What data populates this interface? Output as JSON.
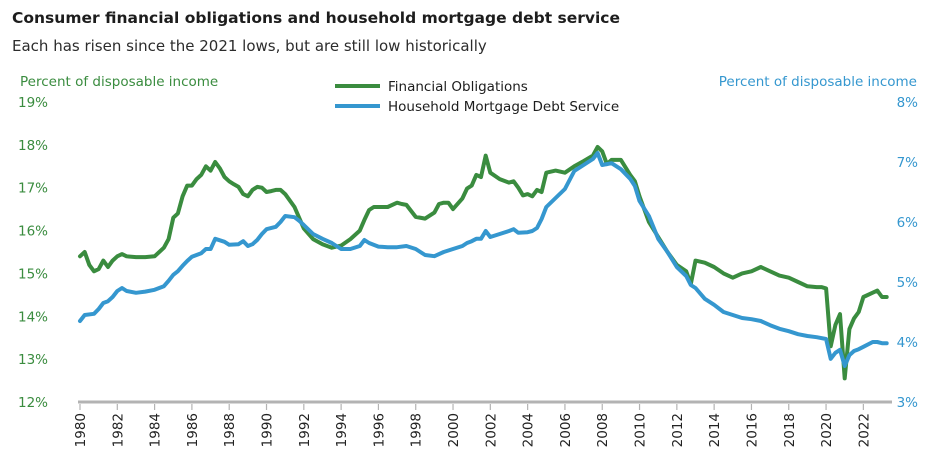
{
  "header": {
    "title": "Consumer financial obligations and household mortgage debt service",
    "subtitle": "Each has risen since the 2021 lows, but are still low historically"
  },
  "colors": {
    "financial_obligations": "#3a8c3f",
    "mortgage_debt_service": "#3597cf",
    "axis": "#b3b3b3"
  },
  "chart_data": {
    "type": "line",
    "y_left": {
      "label": "Percent of disposable income",
      "range": [
        12,
        19
      ],
      "ticks": [
        "12%",
        "13%",
        "14%",
        "15%",
        "16%",
        "17%",
        "18%",
        "19%"
      ]
    },
    "y_right": {
      "label": "Percent of disposable income",
      "range": [
        3,
        8
      ],
      "ticks": [
        "3%",
        "4%",
        "5%",
        "6%",
        "7%",
        "8%"
      ]
    },
    "x": {
      "range": [
        1980,
        2023.75
      ],
      "ticks": [
        "1980",
        "1982",
        "1984",
        "1986",
        "1988",
        "1990",
        "1992",
        "1994",
        "1996",
        "1998",
        "2000",
        "2002",
        "2004",
        "2006",
        "2008",
        "2010",
        "2012",
        "2014",
        "2016",
        "2018",
        "2020",
        "2022"
      ]
    },
    "legend_position": "top-center",
    "grid": false,
    "series": [
      {
        "name": "Financial Obligations",
        "axis": "left",
        "points": [
          [
            1980.0,
            15.4
          ],
          [
            1980.25,
            15.5
          ],
          [
            1980.5,
            15.2
          ],
          [
            1980.75,
            15.05
          ],
          [
            1981.0,
            15.1
          ],
          [
            1981.25,
            15.3
          ],
          [
            1981.5,
            15.15
          ],
          [
            1981.75,
            15.3
          ],
          [
            1982.0,
            15.4
          ],
          [
            1982.25,
            15.45
          ],
          [
            1982.5,
            15.4
          ],
          [
            1983.0,
            15.38
          ],
          [
            1983.5,
            15.38
          ],
          [
            1984.0,
            15.4
          ],
          [
            1984.5,
            15.6
          ],
          [
            1984.75,
            15.8
          ],
          [
            1985.0,
            16.3
          ],
          [
            1985.25,
            16.4
          ],
          [
            1985.5,
            16.8
          ],
          [
            1985.75,
            17.05
          ],
          [
            1986.0,
            17.05
          ],
          [
            1986.25,
            17.2
          ],
          [
            1986.5,
            17.3
          ],
          [
            1986.75,
            17.5
          ],
          [
            1987.0,
            17.4
          ],
          [
            1987.25,
            17.6
          ],
          [
            1987.5,
            17.45
          ],
          [
            1987.75,
            17.25
          ],
          [
            1988.0,
            17.15
          ],
          [
            1988.25,
            17.08
          ],
          [
            1988.5,
            17.02
          ],
          [
            1988.75,
            16.85
          ],
          [
            1989.0,
            16.8
          ],
          [
            1989.25,
            16.95
          ],
          [
            1989.5,
            17.02
          ],
          [
            1989.75,
            17.0
          ],
          [
            1990.0,
            16.9
          ],
          [
            1990.25,
            16.92
          ],
          [
            1990.5,
            16.95
          ],
          [
            1990.75,
            16.95
          ],
          [
            1991.0,
            16.85
          ],
          [
            1991.5,
            16.55
          ],
          [
            1992.0,
            16.05
          ],
          [
            1992.5,
            15.8
          ],
          [
            1993.0,
            15.68
          ],
          [
            1993.5,
            15.6
          ],
          [
            1994.0,
            15.65
          ],
          [
            1994.5,
            15.8
          ],
          [
            1995.0,
            16.0
          ],
          [
            1995.25,
            16.25
          ],
          [
            1995.5,
            16.48
          ],
          [
            1995.75,
            16.55
          ],
          [
            1996.0,
            16.55
          ],
          [
            1996.5,
            16.55
          ],
          [
            1997.0,
            16.65
          ],
          [
            1997.25,
            16.62
          ],
          [
            1997.5,
            16.6
          ],
          [
            1998.0,
            16.32
          ],
          [
            1998.5,
            16.28
          ],
          [
            1999.0,
            16.42
          ],
          [
            1999.25,
            16.62
          ],
          [
            1999.5,
            16.65
          ],
          [
            1999.75,
            16.65
          ],
          [
            2000.0,
            16.5
          ],
          [
            2000.5,
            16.75
          ],
          [
            2000.75,
            16.98
          ],
          [
            2001.0,
            17.05
          ],
          [
            2001.25,
            17.3
          ],
          [
            2001.5,
            17.25
          ],
          [
            2001.75,
            17.75
          ],
          [
            2002.0,
            17.35
          ],
          [
            2002.5,
            17.2
          ],
          [
            2003.0,
            17.12
          ],
          [
            2003.25,
            17.15
          ],
          [
            2003.5,
            17.0
          ],
          [
            2003.75,
            16.82
          ],
          [
            2004.0,
            16.85
          ],
          [
            2004.25,
            16.8
          ],
          [
            2004.5,
            16.95
          ],
          [
            2004.75,
            16.9
          ],
          [
            2005.0,
            17.35
          ],
          [
            2005.5,
            17.4
          ],
          [
            2006.0,
            17.35
          ],
          [
            2006.5,
            17.5
          ],
          [
            2007.0,
            17.62
          ],
          [
            2007.5,
            17.75
          ],
          [
            2007.75,
            17.95
          ],
          [
            2008.0,
            17.85
          ],
          [
            2008.25,
            17.55
          ],
          [
            2008.5,
            17.65
          ],
          [
            2009.0,
            17.65
          ],
          [
            2009.5,
            17.3
          ],
          [
            2009.75,
            17.15
          ],
          [
            2010.0,
            16.8
          ],
          [
            2010.5,
            16.2
          ],
          [
            2011.0,
            15.85
          ],
          [
            2011.5,
            15.5
          ],
          [
            2012.0,
            15.2
          ],
          [
            2012.5,
            15.05
          ],
          [
            2012.75,
            14.75
          ],
          [
            2013.0,
            15.3
          ],
          [
            2013.5,
            15.25
          ],
          [
            2014.0,
            15.15
          ],
          [
            2014.5,
            15.0
          ],
          [
            2015.0,
            14.9
          ],
          [
            2015.5,
            15.0
          ],
          [
            2016.0,
            15.05
          ],
          [
            2016.5,
            15.15
          ],
          [
            2017.0,
            15.05
          ],
          [
            2017.5,
            14.95
          ],
          [
            2018.0,
            14.9
          ],
          [
            2018.5,
            14.8
          ],
          [
            2019.0,
            14.7
          ],
          [
            2019.5,
            14.68
          ],
          [
            2019.75,
            14.68
          ],
          [
            2020.0,
            14.65
          ],
          [
            2020.25,
            13.3
          ],
          [
            2020.5,
            13.8
          ],
          [
            2020.75,
            14.05
          ],
          [
            2021.0,
            12.55
          ],
          [
            2021.25,
            13.7
          ],
          [
            2021.5,
            13.95
          ],
          [
            2021.75,
            14.1
          ],
          [
            2022.0,
            14.45
          ],
          [
            2022.5,
            14.55
          ],
          [
            2022.75,
            14.6
          ],
          [
            2023.0,
            14.45
          ],
          [
            2023.25,
            14.45
          ]
        ]
      },
      {
        "name": "Household Mortgage Debt Service",
        "axis": "right",
        "points": [
          [
            1980.0,
            4.35
          ],
          [
            1980.25,
            4.45
          ],
          [
            1980.75,
            4.47
          ],
          [
            1981.0,
            4.55
          ],
          [
            1981.25,
            4.65
          ],
          [
            1981.5,
            4.68
          ],
          [
            1981.75,
            4.75
          ],
          [
            1982.0,
            4.85
          ],
          [
            1982.25,
            4.9
          ],
          [
            1982.5,
            4.85
          ],
          [
            1983.0,
            4.82
          ],
          [
            1983.5,
            4.84
          ],
          [
            1984.0,
            4.87
          ],
          [
            1984.5,
            4.93
          ],
          [
            1984.75,
            5.02
          ],
          [
            1985.0,
            5.12
          ],
          [
            1985.25,
            5.18
          ],
          [
            1985.5,
            5.27
          ],
          [
            1985.75,
            5.35
          ],
          [
            1986.0,
            5.42
          ],
          [
            1986.5,
            5.48
          ],
          [
            1986.75,
            5.55
          ],
          [
            1987.0,
            5.55
          ],
          [
            1987.25,
            5.72
          ],
          [
            1987.75,
            5.67
          ],
          [
            1988.0,
            5.62
          ],
          [
            1988.5,
            5.63
          ],
          [
            1988.75,
            5.68
          ],
          [
            1989.0,
            5.6
          ],
          [
            1989.25,
            5.63
          ],
          [
            1989.5,
            5.7
          ],
          [
            1989.75,
            5.8
          ],
          [
            1990.0,
            5.88
          ],
          [
            1990.5,
            5.92
          ],
          [
            1990.75,
            6.0
          ],
          [
            1991.0,
            6.1
          ],
          [
            1991.5,
            6.08
          ],
          [
            1991.75,
            6.02
          ],
          [
            1992.0,
            5.95
          ],
          [
            1992.5,
            5.8
          ],
          [
            1993.0,
            5.72
          ],
          [
            1993.5,
            5.65
          ],
          [
            1994.0,
            5.55
          ],
          [
            1994.5,
            5.55
          ],
          [
            1995.0,
            5.6
          ],
          [
            1995.25,
            5.7
          ],
          [
            1995.5,
            5.65
          ],
          [
            1996.0,
            5.59
          ],
          [
            1996.5,
            5.58
          ],
          [
            1997.0,
            5.58
          ],
          [
            1997.5,
            5.6
          ],
          [
            1998.0,
            5.55
          ],
          [
            1998.5,
            5.45
          ],
          [
            1999.0,
            5.43
          ],
          [
            1999.5,
            5.5
          ],
          [
            2000.0,
            5.55
          ],
          [
            2000.5,
            5.6
          ],
          [
            2000.75,
            5.65
          ],
          [
            2001.0,
            5.68
          ],
          [
            2001.25,
            5.72
          ],
          [
            2001.5,
            5.72
          ],
          [
            2001.75,
            5.85
          ],
          [
            2002.0,
            5.75
          ],
          [
            2002.5,
            5.8
          ],
          [
            2003.0,
            5.85
          ],
          [
            2003.25,
            5.88
          ],
          [
            2003.5,
            5.82
          ],
          [
            2004.0,
            5.83
          ],
          [
            2004.25,
            5.85
          ],
          [
            2004.5,
            5.9
          ],
          [
            2004.75,
            6.05
          ],
          [
            2005.0,
            6.25
          ],
          [
            2005.5,
            6.4
          ],
          [
            2006.0,
            6.55
          ],
          [
            2006.5,
            6.85
          ],
          [
            2007.0,
            6.95
          ],
          [
            2007.5,
            7.05
          ],
          [
            2007.75,
            7.15
          ],
          [
            2008.0,
            6.95
          ],
          [
            2008.5,
            6.98
          ],
          [
            2009.0,
            6.88
          ],
          [
            2009.5,
            6.72
          ],
          [
            2009.75,
            6.6
          ],
          [
            2010.0,
            6.35
          ],
          [
            2010.5,
            6.1
          ],
          [
            2011.0,
            5.72
          ],
          [
            2011.5,
            5.5
          ],
          [
            2012.0,
            5.25
          ],
          [
            2012.5,
            5.1
          ],
          [
            2012.75,
            4.95
          ],
          [
            2013.0,
            4.9
          ],
          [
            2013.5,
            4.72
          ],
          [
            2014.0,
            4.62
          ],
          [
            2014.5,
            4.5
          ],
          [
            2015.0,
            4.45
          ],
          [
            2015.5,
            4.4
          ],
          [
            2016.0,
            4.38
          ],
          [
            2016.5,
            4.35
          ],
          [
            2017.0,
            4.28
          ],
          [
            2017.5,
            4.22
          ],
          [
            2018.0,
            4.18
          ],
          [
            2018.5,
            4.13
          ],
          [
            2019.0,
            4.1
          ],
          [
            2019.5,
            4.08
          ],
          [
            2020.0,
            4.05
          ],
          [
            2020.25,
            3.72
          ],
          [
            2020.5,
            3.82
          ],
          [
            2020.75,
            3.87
          ],
          [
            2021.0,
            3.6
          ],
          [
            2021.25,
            3.78
          ],
          [
            2021.5,
            3.85
          ],
          [
            2021.75,
            3.88
          ],
          [
            2022.0,
            3.92
          ],
          [
            2022.5,
            4.0
          ],
          [
            2022.75,
            4.0
          ],
          [
            2023.0,
            3.98
          ],
          [
            2023.25,
            3.98
          ]
        ]
      }
    ]
  }
}
